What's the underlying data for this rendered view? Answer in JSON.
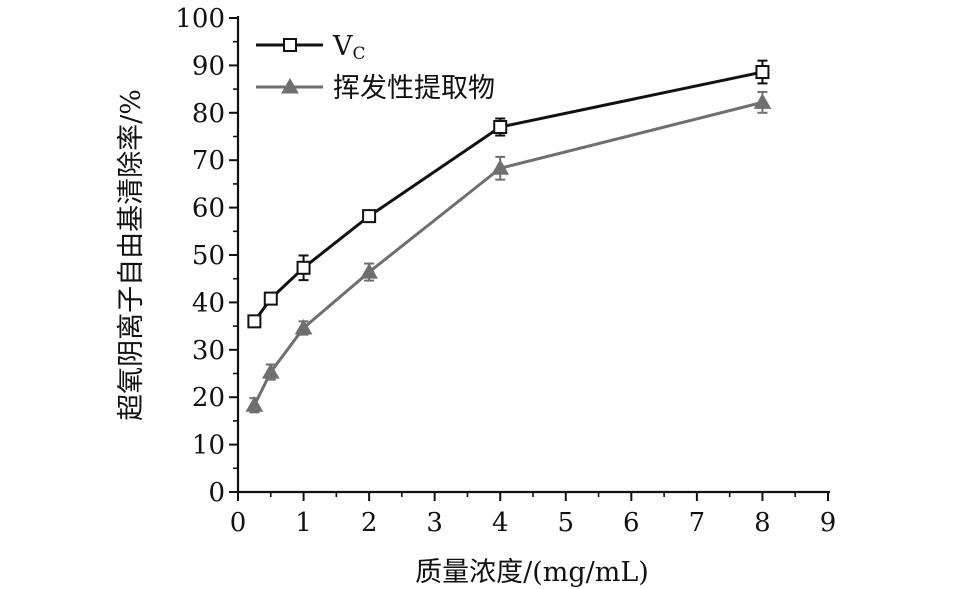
{
  "chart_data": {
    "type": "line",
    "xlabel": "质量浓度/(mg/mL)",
    "ylabel": "超氧阴离子自由基清除率/%",
    "xlim": [
      0,
      9
    ],
    "ylim": [
      0,
      100
    ],
    "x_ticks": [
      0,
      1,
      2,
      3,
      4,
      5,
      6,
      7,
      8,
      9
    ],
    "y_ticks": [
      0,
      10,
      20,
      30,
      40,
      50,
      60,
      70,
      80,
      90,
      100
    ],
    "legend_position": "top-left",
    "grid": false,
    "x": [
      0.25,
      0.5,
      1,
      2,
      4,
      8
    ],
    "series": [
      {
        "name": "V",
        "name_subscript": "C",
        "marker": "open-square",
        "color": "#111111",
        "values": [
          36.0,
          40.8,
          47.3,
          58.2,
          77.0,
          88.6
        ],
        "errors": [
          1.0,
          1.2,
          2.6,
          1.2,
          1.8,
          2.4
        ]
      },
      {
        "name": "挥发性提取物",
        "marker": "filled-triangle",
        "color": "#6f6f6f",
        "values": [
          18.3,
          25.3,
          34.6,
          46.4,
          68.3,
          82.2
        ],
        "errors": [
          1.5,
          1.6,
          1.4,
          1.8,
          2.4,
          2.2
        ]
      }
    ]
  }
}
